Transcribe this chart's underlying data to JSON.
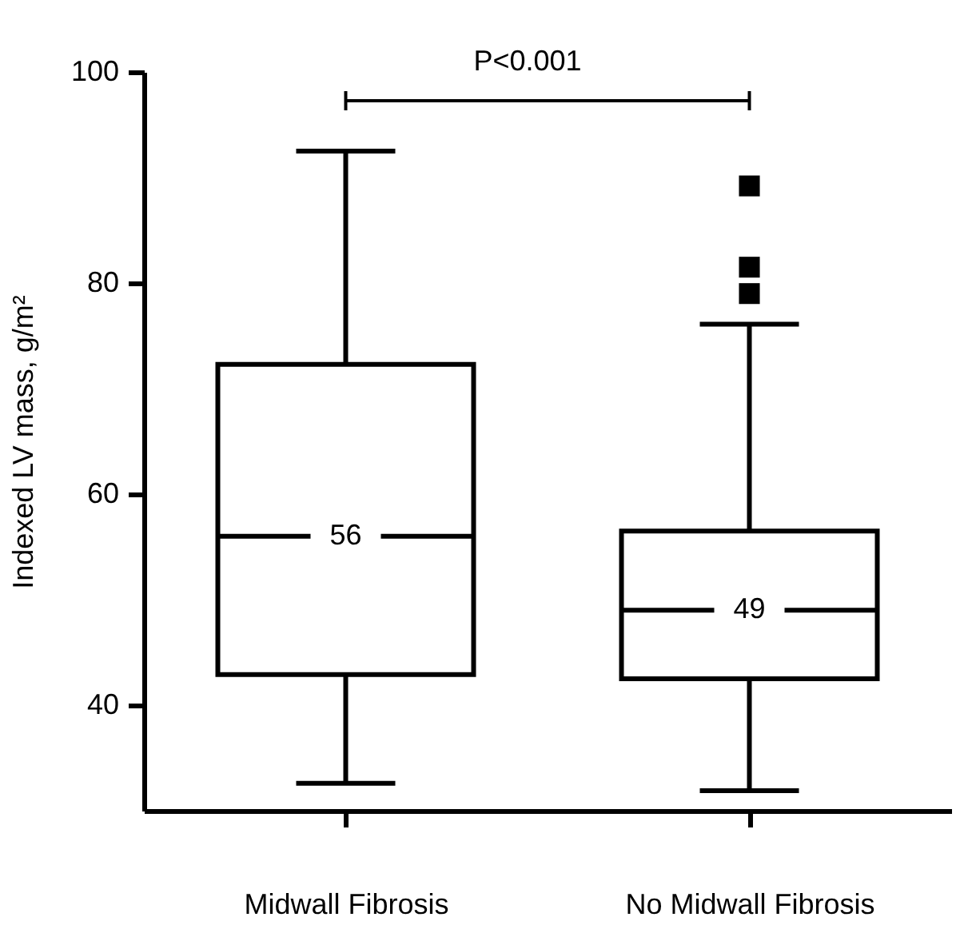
{
  "chart_data": {
    "type": "box",
    "ylabel": "Indexed LV mass, g/m²",
    "categories": [
      "Midwall Fibrosis",
      "No Midwall Fibrosis"
    ],
    "boxes": [
      {
        "low": 32.6,
        "q1": 42.9,
        "median": 56,
        "q3": 72.3,
        "high": 92.5
      },
      {
        "low": 31.9,
        "q1": 42.5,
        "median": 49,
        "q3": 56.5,
        "high": 76.1,
        "outliers": [
          89.2,
          81.5,
          79.0
        ]
      }
    ],
    "color": "#ffffff",
    "ylim": [
      30,
      100
    ],
    "yticks": [
      40,
      60,
      80,
      100
    ],
    "value_labels": [
      "56",
      "49"
    ],
    "grid": false,
    "marker": "square",
    "annotations": [
      "P<0.001"
    ]
  }
}
